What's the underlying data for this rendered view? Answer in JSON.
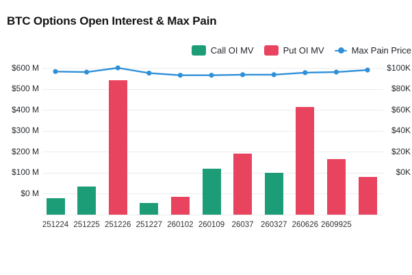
{
  "title": "BTC Options Open Interest & Max Pain",
  "legend": {
    "call": {
      "label": "Call OI MV"
    },
    "put": {
      "label": "Put OI MV"
    },
    "max_pain": {
      "label": "Max Pain Price"
    }
  },
  "colors": {
    "call_green": "#1d9d77",
    "put_red": "#e8435f",
    "max_pain_blue": "#2e90d8",
    "gridline": "#ececec",
    "title_text": "#141414",
    "axis_text": "#24292e",
    "xlabel_text": "#333333",
    "background": "#ffffff"
  },
  "chart_data": {
    "type": "bar+line dual-axis",
    "title": "BTC Options Open Interest & Max Pain",
    "categories": [
      "251224",
      "251225",
      "251226",
      "251227",
      "260102",
      "260109",
      "26037",
      "260327",
      "260626",
      "2609925",
      ""
    ],
    "bars": [
      {
        "category": "251224",
        "series": "Call OI MV",
        "value_musd": 80
      },
      {
        "category": "251225",
        "series": "Call OI MV",
        "value_musd": 135
      },
      {
        "category": "251226",
        "series": "Put OI MV",
        "value_musd": 640
      },
      {
        "category": "251227",
        "series": "Call OI MV",
        "value_musd": 55
      },
      {
        "category": "260102",
        "series": "Put OI MV",
        "value_musd": 85
      },
      {
        "category": "260109",
        "series": "Call OI MV",
        "value_musd": 220
      },
      {
        "category": "26037",
        "series": "Put OI MV",
        "value_musd": 290
      },
      {
        "category": "260327",
        "series": "Call OI MV",
        "value_musd": 200
      },
      {
        "category": "260626",
        "series": "Put OI MV",
        "value_musd": 515
      },
      {
        "category": "2609925",
        "series": "Put OI MV",
        "value_musd": 265
      },
      {
        "category": "",
        "series": "Put OI MV",
        "value_musd": 180
      }
    ],
    "line_series": {
      "name": "Max Pain Price",
      "values_kusd": [
        96.5,
        96,
        100,
        95,
        93,
        93,
        93.5,
        93.5,
        95.5,
        96,
        98
      ]
    },
    "left_axis": {
      "tick_labels": [
        "$600 M",
        "$500 M",
        "$400 M",
        "$300 M",
        "$200 M",
        "$100 M",
        "$0 M"
      ],
      "musd_per_gridline_step": 100,
      "unit": "USD millions"
    },
    "right_axis": {
      "tick_labels": [
        "$100K",
        "$80K",
        "$60K",
        "$40K",
        "$20K",
        "$0K"
      ],
      "kusd_per_gridline_step": 20,
      "top_gridline_value_kusd": 100,
      "unit": "USD thousands"
    },
    "gridlines": {
      "horizontal_steps": 7,
      "shown": true
    },
    "legend_position": "top-right"
  }
}
